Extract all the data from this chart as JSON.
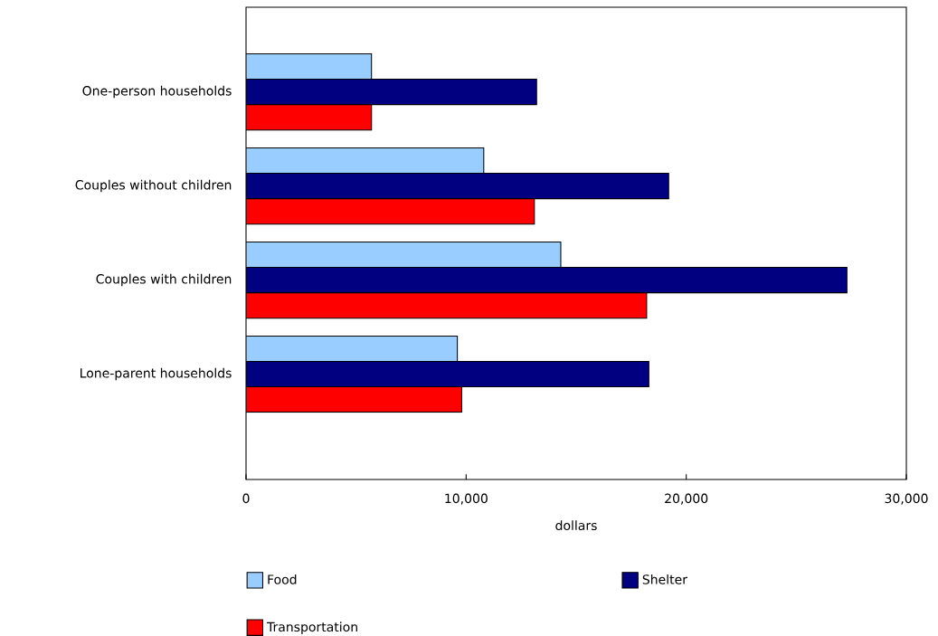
{
  "chart_data": {
    "type": "bar",
    "orientation": "horizontal",
    "xlabel": "dollars",
    "categories": [
      "One-person households",
      "Couples without children",
      "Couples with children",
      "Lone-parent households"
    ],
    "series": [
      {
        "name": "Food",
        "color": "#99ccff",
        "values": [
          5700,
          10800,
          14300,
          9600
        ]
      },
      {
        "name": "Shelter",
        "color": "#000080",
        "values": [
          13200,
          19200,
          27300,
          18300
        ]
      },
      {
        "name": "Transportation",
        "color": "#ff0000",
        "values": [
          5700,
          13100,
          18200,
          9800
        ]
      }
    ],
    "xlim": [
      0,
      30000
    ],
    "xticks": [
      {
        "value": 0,
        "label": "0"
      },
      {
        "value": 10000,
        "label": "10,000"
      },
      {
        "value": 20000,
        "label": "20,000"
      },
      {
        "value": 30000,
        "label": "30,000"
      }
    ],
    "grid": false,
    "legend": "bottom"
  }
}
